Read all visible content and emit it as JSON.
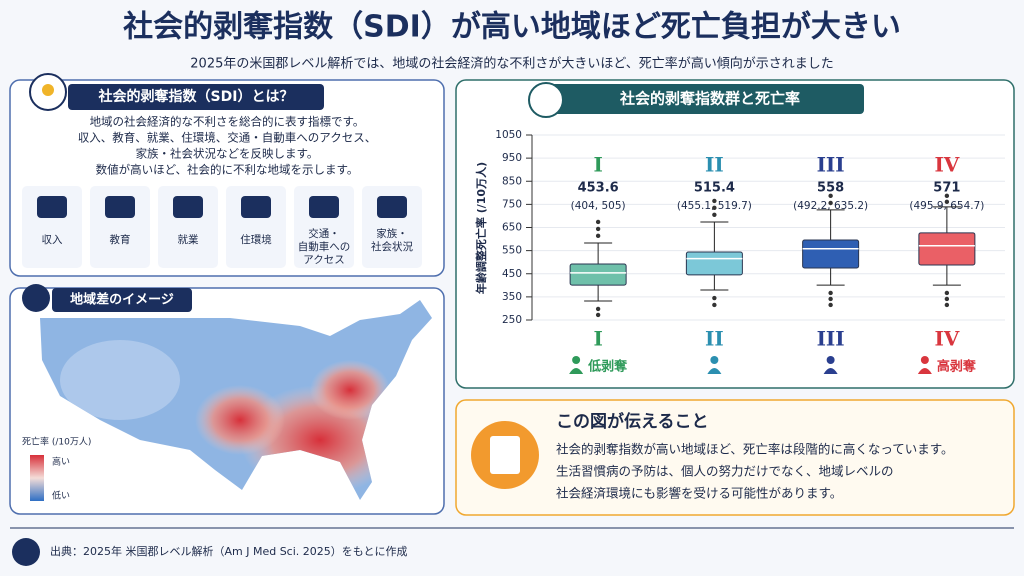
{
  "header": {
    "title": "社会的剥奪指数（SDI）が高い地域ほど死亡負担が大きい",
    "subtitle": "2025年の米国郡レベル解析では、地域の社会経済的な不利さが大きいほど、死亡率が高い傾向が示されました"
  },
  "about": {
    "title": "社会的剥奪指数（SDI）とは？",
    "lines": [
      "地域の社会経済的な不利さを総合的に表す指標です。",
      "収入、教育、就業、住環境、交通・自動車へのアクセス、",
      "家族・社会状況などを反映します。",
      "数値が高いほど、社会的に不利な地域を示します。"
    ],
    "factors": [
      [
        "収入"
      ],
      [
        "教育"
      ],
      [
        "就業"
      ],
      [
        "住環境"
      ],
      [
        "交通・",
        "自動車への",
        "アクセス"
      ],
      [
        "家族・",
        "社会状況"
      ]
    ]
  },
  "map": {
    "title": "地域差のイメージ",
    "legend_title": "死亡率 (/10万人)",
    "high": "高い",
    "low": "低い"
  },
  "chart_data": {
    "type": "box",
    "title": "社会的剥奪指数群と死亡率",
    "y_label": "年齢調整死亡率 (/10万人)",
    "categories": [
      "I",
      "II",
      "III",
      "IV"
    ],
    "medians": [
      453.6,
      515.4,
      558,
      571
    ],
    "interval_labels": [
      "(404, 505)",
      "(455.1, 519.7)",
      "(492.2, 635.2)",
      "(495.9, 654.7)"
    ],
    "q1": [
      401,
      445,
      475,
      488
    ],
    "q3": [
      492,
      544,
      596,
      627
    ],
    "whisker_low": [
      332,
      380,
      401,
      401
    ],
    "whisker_high": [
      583,
      674,
      726,
      739
    ],
    "outliers": [
      [
        674,
        644,
        614,
        298,
        272
      ],
      [
        765,
        735,
        705,
        345,
        315
      ],
      [
        787,
        756,
        367,
        341,
        315
      ],
      [
        787,
        761,
        367,
        341,
        315
      ]
    ],
    "colors": [
      "#6fc0aa",
      "#7cc8d8",
      "#2f5fb3",
      "#ea6066"
    ],
    "label_colors": [
      "#2f9a5a",
      "#2b8fb0",
      "#2a3f8f",
      "#d9363e"
    ],
    "low_label": "低剥奪",
    "high_label": "高剥奪",
    "ylim": [
      250,
      1050
    ],
    "yticks": [
      250,
      350,
      450,
      550,
      650,
      750,
      850,
      950,
      1050
    ],
    "grid": true
  },
  "takeaway": {
    "title": "この図が伝えること",
    "lines": [
      "社会的剥奪指数が高い地域ほど、死亡率は段階的に高くなっています。",
      "生活習慣病の予防は、個人の努力だけでなく、地域レベルの",
      "社会経済環境にも影響を受ける可能性があります。"
    ]
  },
  "footer": {
    "source": "出典：2025年 米国郡レベル解析（Am J Med Sci. 2025）をもとに作成"
  }
}
